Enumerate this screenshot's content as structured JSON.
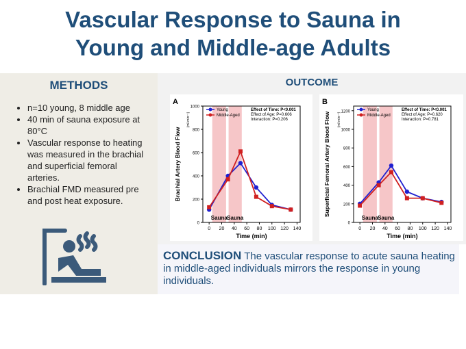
{
  "header": {
    "title_lines": [
      "Vascular Response to Sauna in",
      "Young and Middle-age Adults"
    ]
  },
  "methods": {
    "heading": "METHODS",
    "items": [
      "n=10 young, 8 middle age",
      "40 min of sauna exposure at 80°C",
      "Vascular response to heating was measured in the brachial and superficial femoral arteries.",
      "Brachial FMD measured pre and post heat exposure."
    ]
  },
  "outcome": {
    "heading": "OUTCOME"
  },
  "conclusion": {
    "heading": "CONCLUSION",
    "text": "The vascular response to acute sauna heating in middle-aged individuals mirrors the response in young individuals."
  },
  "chart_data": [
    {
      "type": "line",
      "panel": "A",
      "y_label": "Brachial Artery Blood Flow",
      "y_unit": "(ml·min⁻¹)",
      "x_label": "Time (min)",
      "x": [
        0,
        30,
        50,
        75,
        100,
        130
      ],
      "series": [
        {
          "name": "Young",
          "color": "#2020d0",
          "values": [
            110,
            400,
            510,
            300,
            150,
            110
          ]
        },
        {
          "name": "Middle-Aged",
          "color": "#d02020",
          "values": [
            130,
            370,
            610,
            220,
            140,
            110
          ]
        }
      ],
      "xlim": [
        -10,
        145
      ],
      "xticks": [
        0,
        20,
        40,
        60,
        80,
        100,
        120,
        140
      ],
      "ylim": [
        0,
        1000
      ],
      "yticks": [
        0,
        200,
        400,
        600,
        800,
        1000
      ],
      "spans": [
        {
          "from": 5,
          "to": 27,
          "label": "Sauna"
        },
        {
          "from": 31,
          "to": 52,
          "label": "Sauna"
        }
      ],
      "stats": [
        "Effect of Time: P<0.001",
        "Effect of Age: P=0.606",
        "Interaction: P=0.206"
      ]
    },
    {
      "type": "line",
      "panel": "B",
      "y_label": "Superficial Femoral Artery Blood Flow",
      "y_unit": "(ml·min⁻¹)",
      "x_label": "Time (min)",
      "x": [
        0,
        30,
        50,
        75,
        100,
        130
      ],
      "series": [
        {
          "name": "Young",
          "color": "#2020d0",
          "values": [
            200,
            430,
            610,
            330,
            260,
            220
          ]
        },
        {
          "name": "Middle-Aged",
          "color": "#d02020",
          "values": [
            180,
            400,
            540,
            260,
            260,
            210
          ]
        }
      ],
      "xlim": [
        -10,
        145
      ],
      "xticks": [
        0,
        20,
        40,
        60,
        80,
        100,
        120,
        140
      ],
      "ylim": [
        0,
        1250
      ],
      "yticks": [
        0,
        200,
        400,
        600,
        800,
        1000,
        1200
      ],
      "spans": [
        {
          "from": 5,
          "to": 27,
          "label": "Sauna"
        },
        {
          "from": 31,
          "to": 52,
          "label": "Sauna"
        }
      ],
      "stats": [
        "Effect of Time: P<0.001",
        "Effect of Age: P=0.620",
        "Interaction: P=0.781"
      ]
    }
  ]
}
